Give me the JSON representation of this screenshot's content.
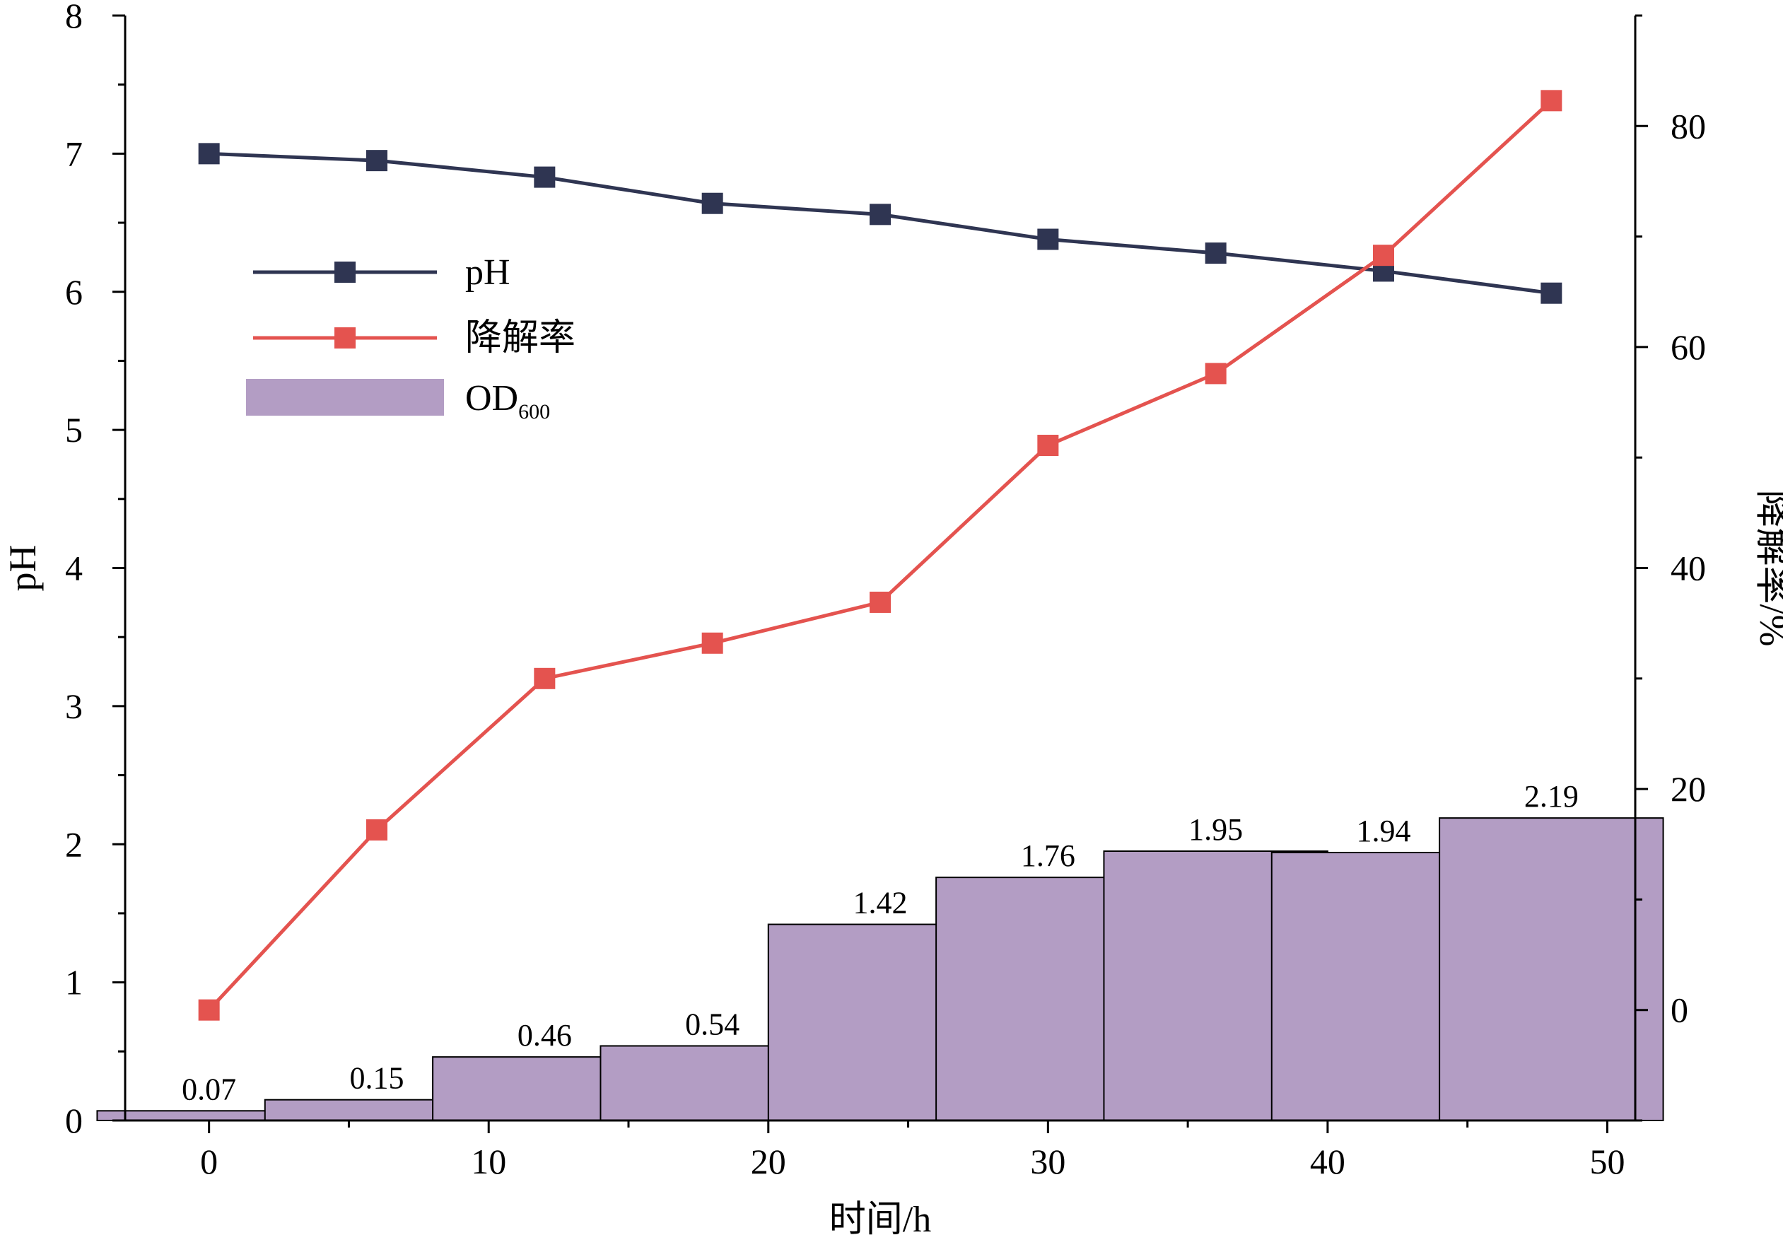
{
  "chart_data": {
    "type": "bar+line",
    "x_label": "时间/h",
    "x_ticks": [
      0,
      10,
      20,
      30,
      40,
      50
    ],
    "x_range": [
      -3,
      51
    ],
    "left_axis": {
      "label": "pH",
      "range": [
        0,
        8
      ],
      "ticks": [
        0,
        1,
        2,
        3,
        4,
        5,
        6,
        7,
        8
      ]
    },
    "right_axis": {
      "label": "降解率/%",
      "range": [
        -10,
        90
      ],
      "ticks": [
        0,
        20,
        40,
        60,
        80
      ]
    },
    "series": [
      {
        "name": "pH",
        "kind": "line",
        "axis": "left",
        "color": "#2f3552",
        "x": [
          0,
          6,
          12,
          18,
          24,
          30,
          36,
          42,
          48
        ],
        "values": [
          7.0,
          6.95,
          6.83,
          6.64,
          6.56,
          6.38,
          6.28,
          6.15,
          5.99
        ]
      },
      {
        "name": "降解率",
        "kind": "line",
        "axis": "right",
        "color": "#e4534f",
        "x": [
          0,
          6,
          12,
          18,
          24,
          30,
          36,
          42,
          48
        ],
        "values": [
          0,
          16.3,
          30.0,
          33.2,
          36.9,
          51.1,
          57.6,
          68.3,
          82.3
        ]
      },
      {
        "name": "OD",
        "name_sub": "600",
        "kind": "bar",
        "axis": "left",
        "color": "#b39dc4",
        "x": [
          0,
          6,
          12,
          18,
          24,
          30,
          36,
          42,
          48
        ],
        "values": [
          0.07,
          0.15,
          0.46,
          0.54,
          1.42,
          1.76,
          1.95,
          1.94,
          2.19
        ],
        "labels": [
          "0.07",
          "0.15",
          "0.46",
          "0.54",
          "1.42",
          "1.76",
          "1.95",
          "1.94",
          "2.19"
        ]
      }
    ],
    "legend": "top-left"
  }
}
